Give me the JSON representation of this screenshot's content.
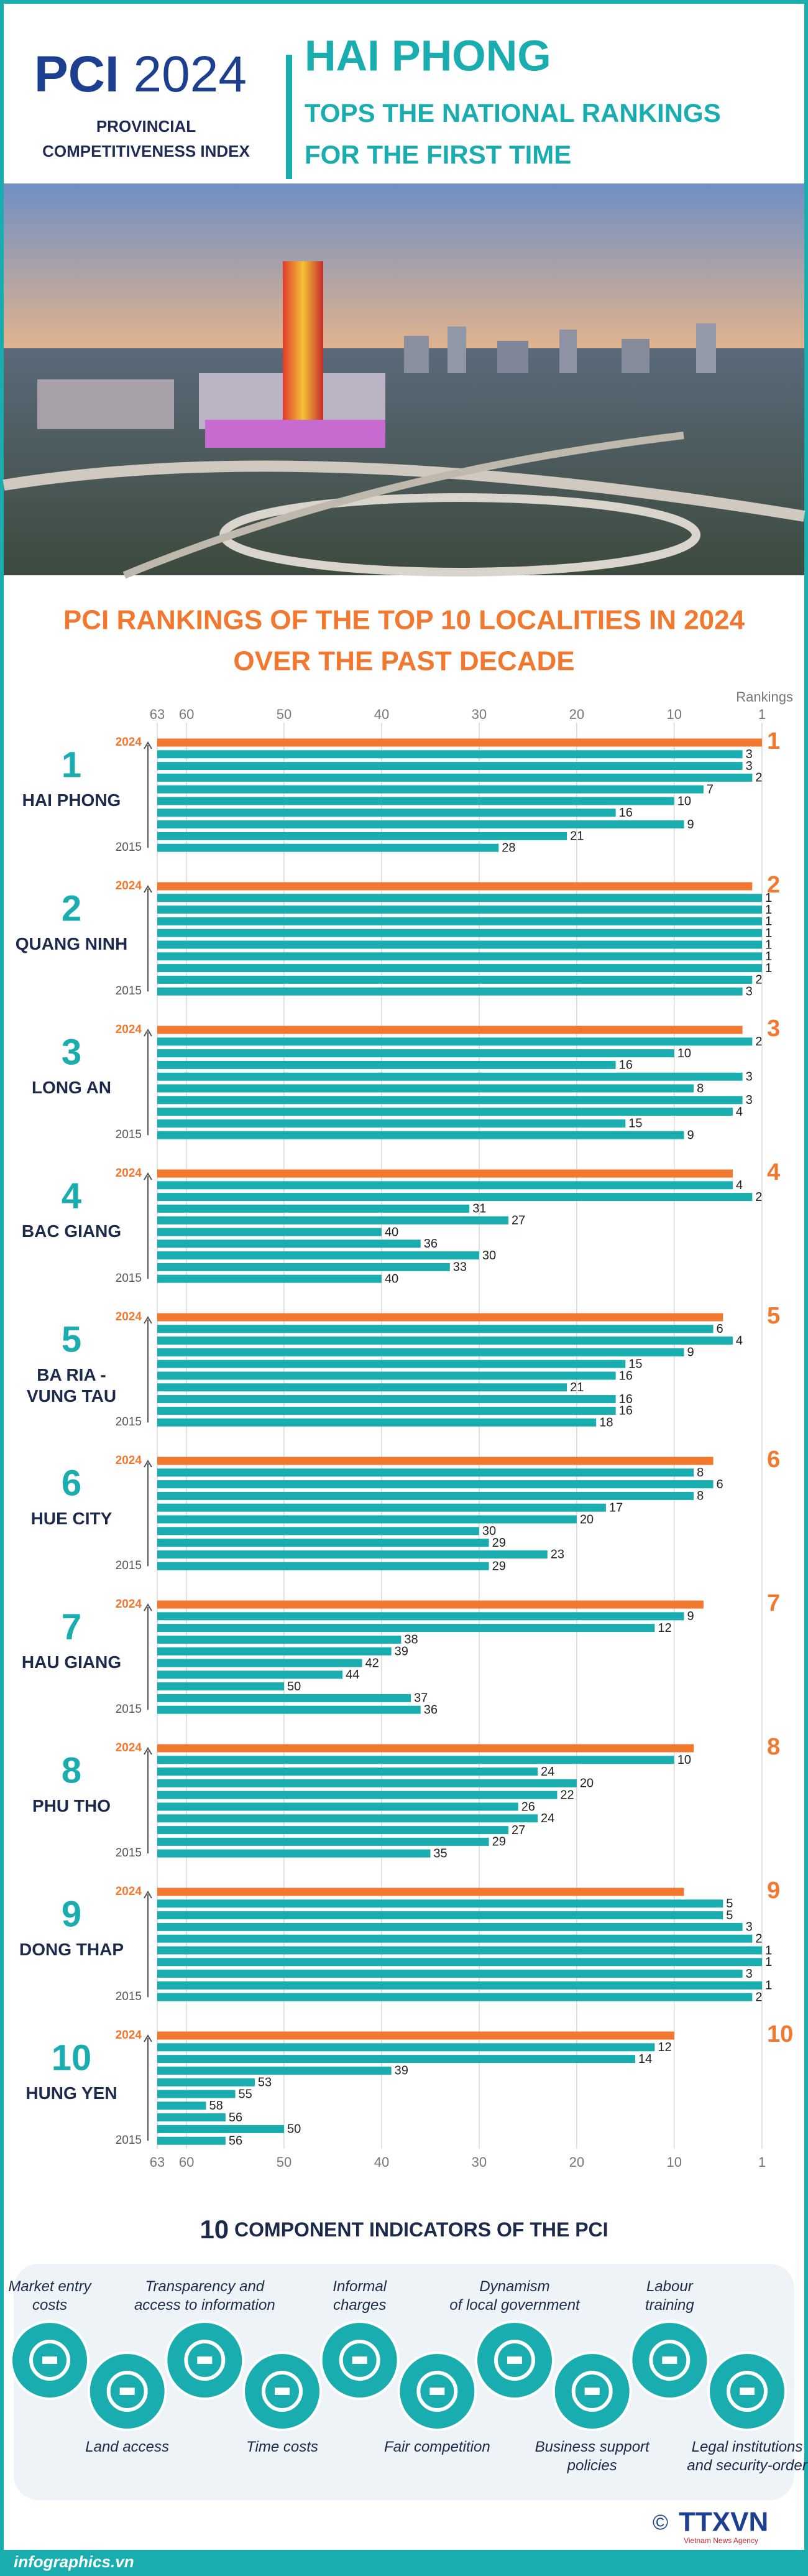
{
  "header": {
    "brand": "PCI",
    "year": "2024",
    "subtitle_lines": [
      "PROVINCIAL",
      "COMPETITIVENESS INDEX"
    ],
    "headline": "HAI PHONG",
    "subheadline_lines": [
      "TOPS THE NATIONAL RANKINGS",
      "FOR THE FIRST TIME"
    ]
  },
  "chart_data": {
    "type": "bar",
    "orientation": "horizontal",
    "title_lines": [
      "PCI RANKINGS OF THE TOP 10 LOCALITIES IN 2024",
      "OVER THE PAST DECADE"
    ],
    "x_label": "Rankings",
    "xlim": [
      63,
      1
    ],
    "xticks": [
      63,
      60,
      50,
      40,
      30,
      20,
      10,
      1
    ],
    "grid": true,
    "categories": [
      "2024",
      null,
      null,
      null,
      null,
      null,
      null,
      null,
      null,
      "2015"
    ],
    "color": "#1aadb0",
    "highlight_color": "#f2772f",
    "series": [
      {
        "name": "HAI PHONG",
        "values": [
          1,
          3,
          3,
          2,
          7,
          10,
          16,
          9,
          21,
          28
        ]
      },
      {
        "name": "QUANG NINH",
        "values": [
          2,
          1,
          1,
          1,
          1,
          1,
          1,
          1,
          2,
          3
        ]
      },
      {
        "name": "LONG AN",
        "values": [
          3,
          2,
          10,
          16,
          3,
          8,
          3,
          4,
          15,
          9
        ]
      },
      {
        "name": "BAC GIANG",
        "values": [
          4,
          4,
          2,
          31,
          27,
          40,
          36,
          30,
          33,
          40
        ]
      },
      {
        "name": "BA RIA - VUNG TAU",
        "values": [
          5,
          6,
          4,
          9,
          15,
          16,
          21,
          16,
          16,
          18
        ]
      },
      {
        "name": "HUE CITY",
        "values": [
          6,
          8,
          6,
          8,
          17,
          20,
          30,
          29,
          23,
          29
        ]
      },
      {
        "name": "HAU GIANG",
        "values": [
          7,
          9,
          12,
          38,
          39,
          42,
          44,
          50,
          37,
          36
        ]
      },
      {
        "name": "PHU THO",
        "values": [
          8,
          10,
          24,
          20,
          22,
          26,
          24,
          27,
          29,
          35
        ]
      },
      {
        "name": "DONG THAP",
        "values": [
          9,
          5,
          5,
          3,
          2,
          1,
          1,
          3,
          1,
          2
        ]
      },
      {
        "name": "HUNG YEN",
        "values": [
          10,
          12,
          14,
          39,
          53,
          55,
          58,
          56,
          50,
          56
        ]
      }
    ]
  },
  "indicators": {
    "title_number": "10",
    "title": "COMPONENT INDICATORS OF THE PCI",
    "items": [
      {
        "label_lines": [
          "Market entry",
          "costs"
        ]
      },
      {
        "label_lines": [
          "Land access"
        ]
      },
      {
        "label_lines": [
          "Transparency and",
          "access to information"
        ]
      },
      {
        "label_lines": [
          "Time costs"
        ]
      },
      {
        "label_lines": [
          "Informal",
          "charges"
        ]
      },
      {
        "label_lines": [
          "Fair competition"
        ]
      },
      {
        "label_lines": [
          "Dynamism",
          "of local government"
        ]
      },
      {
        "label_lines": [
          "Business support",
          "policies"
        ]
      },
      {
        "label_lines": [
          "Labour",
          "training"
        ]
      },
      {
        "label_lines": [
          "Legal institutions",
          "and security-order"
        ]
      }
    ]
  },
  "footer": {
    "site": "infographics.vn",
    "copyright": "©",
    "agency": "TTXVN",
    "agency_subtitle": "Vietnam News Agency"
  }
}
